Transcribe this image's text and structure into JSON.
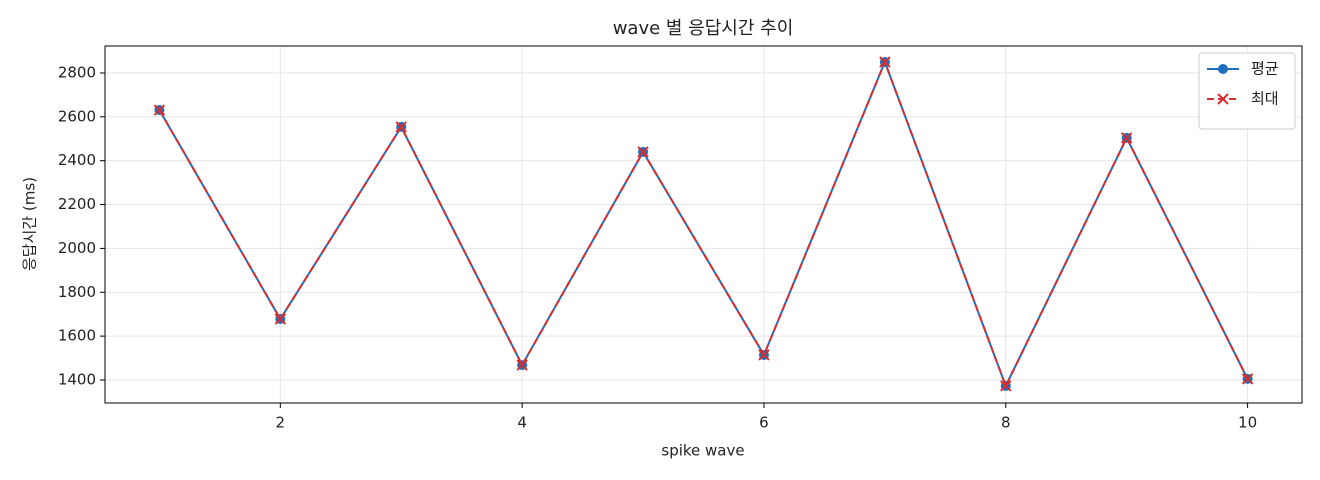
{
  "chart_data": {
    "type": "line",
    "title": "wave 별 응답시간 추이",
    "xlabel": "spike wave",
    "ylabel": "응답시간 (ms)",
    "x": [
      1,
      2,
      3,
      4,
      5,
      6,
      7,
      8,
      9,
      10
    ],
    "series": [
      {
        "name": "평균",
        "color": "#1f6fc0",
        "marker": "o",
        "linestyle": "solid",
        "values": [
          2631,
          1678,
          2554,
          1468,
          2440,
          1514,
          2850,
          1373,
          2504,
          1405
        ]
      },
      {
        "name": "최대",
        "color": "#d62f2f",
        "marker": "x",
        "linestyle": "dashed",
        "values": [
          2631,
          1678,
          2554,
          1468,
          2440,
          1514,
          2850,
          1373,
          2504,
          1405
        ]
      }
    ],
    "xlim": [
      0.55,
      10.45
    ],
    "ylim": [
      1295,
      2923
    ],
    "xticks": [
      2,
      4,
      6,
      8,
      10
    ],
    "yticks": [
      1400,
      1600,
      1800,
      2000,
      2200,
      2400,
      2600,
      2800
    ],
    "grid": true,
    "legend": "upper right"
  }
}
